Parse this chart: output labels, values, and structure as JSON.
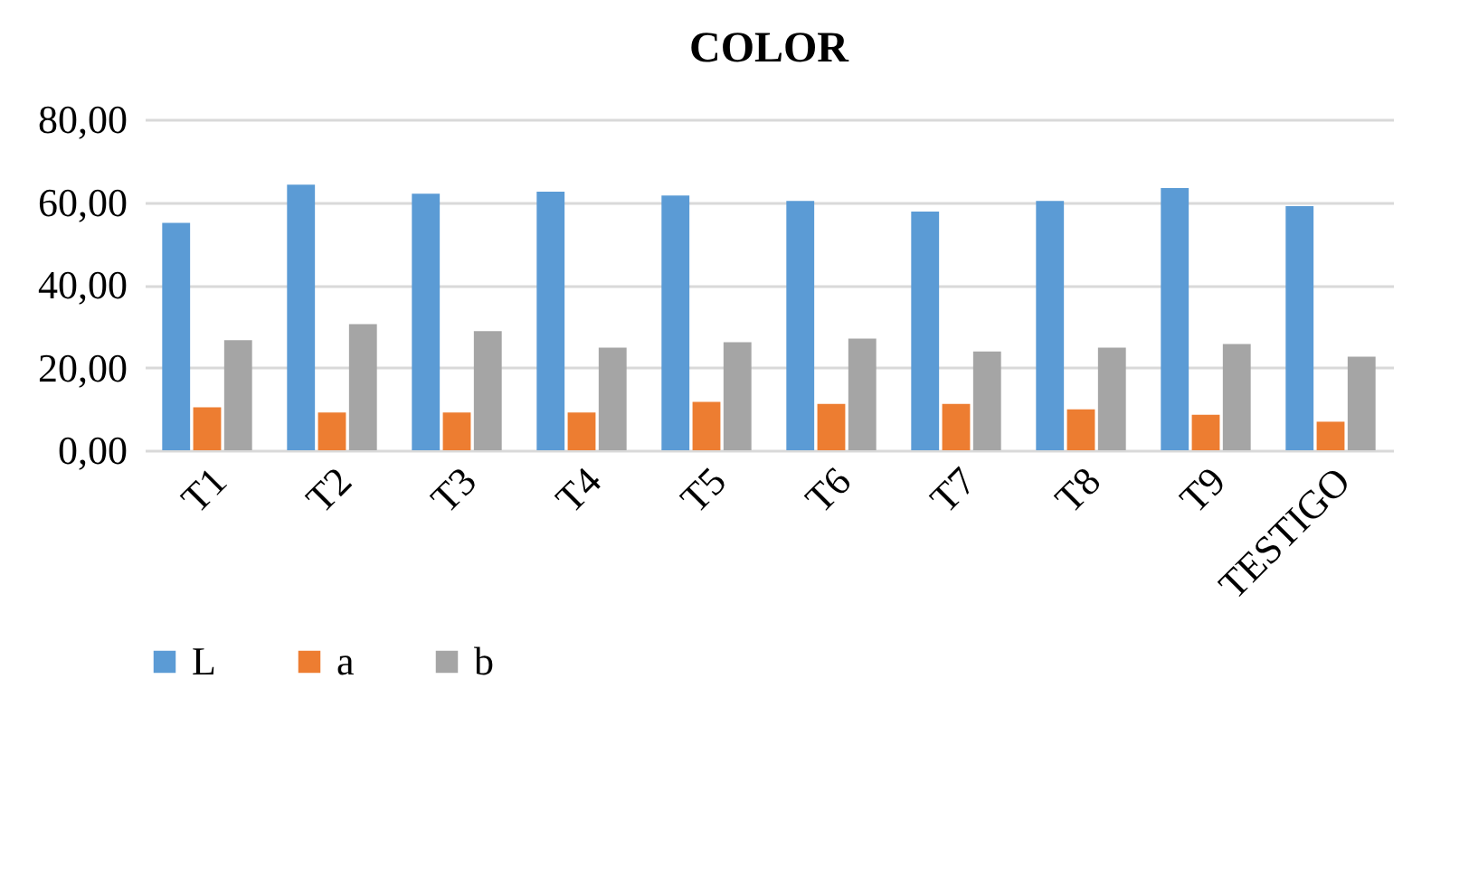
{
  "chart_data": {
    "type": "bar",
    "title": "COLOR",
    "categories": [
      "T1",
      "T2",
      "T3",
      "T4",
      "T5",
      "T6",
      "T7",
      "T8",
      "T9",
      "TESTIGO"
    ],
    "series": [
      {
        "name": "L",
        "color": "#5b9bd5",
        "values": [
          55.0,
          64.2,
          62.0,
          62.5,
          61.6,
          60.3,
          57.7,
          60.3,
          63.4,
          59.0
        ]
      },
      {
        "name": "a",
        "color": "#ed7d31",
        "values": [
          10.4,
          9.1,
          9.1,
          9.1,
          11.7,
          11.2,
          11.2,
          9.9,
          8.6,
          6.9
        ]
      },
      {
        "name": "b",
        "color": "#a5a5a5",
        "values": [
          26.6,
          30.5,
          28.8,
          24.8,
          26.1,
          27.0,
          23.9,
          24.8,
          25.7,
          22.6
        ]
      }
    ],
    "ylim": [
      0,
      80
    ],
    "yticks": [
      {
        "value": 0,
        "label": "0,00"
      },
      {
        "value": 20,
        "label": "20,00"
      },
      {
        "value": 40,
        "label": "40,00"
      },
      {
        "value": 60,
        "label": "60,00"
      },
      {
        "value": 80,
        "label": "80,00"
      }
    ],
    "grid": "y",
    "legend": "bottom"
  }
}
